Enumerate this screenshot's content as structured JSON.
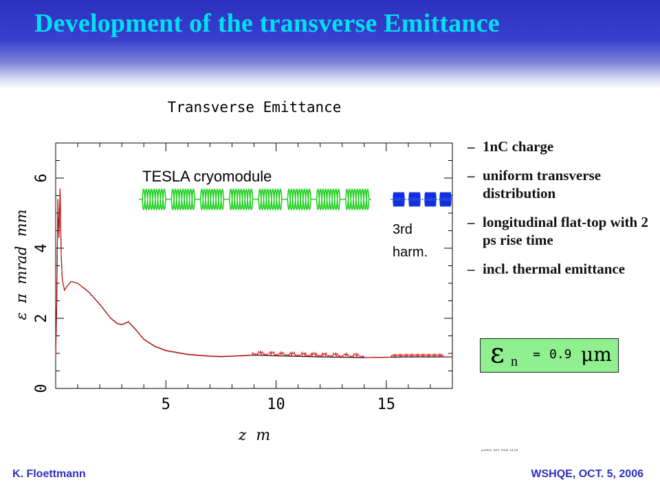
{
  "slide": {
    "title": "Development of the transverse Emittance",
    "bullets": [
      {
        "dash": "–",
        "text": "1nC charge"
      },
      {
        "dash": "–",
        "text": "uniform transverse distribution"
      },
      {
        "dash": "–",
        "text": "longitudinal flat-top with 2 ps rise time"
      },
      {
        "dash": "–",
        "text": "incl. thermal emittance"
      }
    ],
    "formula": {
      "symbol": "ε",
      "subscript": "n",
      "equals": "=",
      "value": "0.9",
      "unit": "μm"
    },
    "footer_left": "K. Floettmann",
    "footer_right": "WSHQE, OCT. 5, 2006",
    "tiny_text": "px0001 SEP 2006 18:04"
  },
  "colors": {
    "banner": "#2b2fbf",
    "title": "#00e0f0",
    "footer": "#2b2fbf",
    "emittance_red": "#e01010",
    "emittance_black": "#000000",
    "cryomodule_green": "#20d020",
    "harmonic_blue": "#1030e0",
    "formula_box": "#90f090"
  },
  "chart_data": {
    "type": "line",
    "title": "Transverse Emittance",
    "xlabel": "z  m",
    "ylabel": "ε  π  mrad  mm",
    "xlim": [
      0,
      18
    ],
    "ylim": [
      0,
      7
    ],
    "x_ticks": [
      5,
      10,
      15
    ],
    "y_ticks": [
      0,
      2,
      4,
      6
    ],
    "grid": false,
    "annotations": [
      "TESLA cryomodule",
      "3rd",
      "harm."
    ],
    "series": [
      {
        "x": [
          0.0,
          0.05,
          0.1,
          0.15,
          0.2,
          0.25,
          0.3,
          0.4,
          0.5,
          0.7,
          1.0,
          1.5,
          2.0,
          2.5,
          2.8,
          3.0,
          3.3,
          3.6,
          4.0,
          4.5,
          5.0,
          6.0,
          7.0,
          7.5,
          8.0,
          9.0,
          10.0,
          12.0,
          14.0,
          16.0,
          18.0
        ],
        "values": [
          0.9,
          2.5,
          5.4,
          4.3,
          5.7,
          3.8,
          3.1,
          2.8,
          2.9,
          3.05,
          3.0,
          2.75,
          2.4,
          2.0,
          1.85,
          1.82,
          1.9,
          1.7,
          1.4,
          1.2,
          1.08,
          0.97,
          0.92,
          0.91,
          0.92,
          0.95,
          0.93,
          0.9,
          0.88,
          0.9,
          0.9
        ]
      }
    ]
  }
}
